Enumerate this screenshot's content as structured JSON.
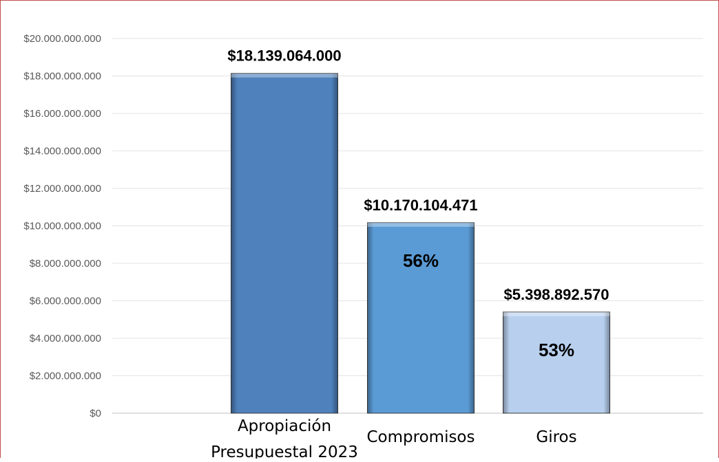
{
  "chart_data": {
    "type": "bar",
    "categories": [
      "Apropiación Presupuestal 2023",
      "Compromisos",
      "Giros"
    ],
    "category_lines": [
      [
        "Apropiación",
        "Presupuestal 2023"
      ],
      [
        "Compromisos"
      ],
      [
        "Giros"
      ]
    ],
    "values": [
      18139064000,
      10170104471,
      5398892570
    ],
    "data_labels": [
      "$18.139.064.000",
      "$10.170.104.471",
      "$5.398.892.570"
    ],
    "inner_labels": [
      "",
      "56%",
      "53%"
    ],
    "bar_colors": [
      "#4f81bd",
      "#5b9bd5",
      "#b8d0ee"
    ],
    "ylim": [
      0,
      20000000000
    ],
    "yticks": [
      0,
      2000000000,
      4000000000,
      6000000000,
      8000000000,
      10000000000,
      12000000000,
      14000000000,
      16000000000,
      18000000000,
      20000000000
    ],
    "ytick_labels": [
      "$0",
      "$2.000.000.000",
      "$4.000.000.000",
      "$6.000.000.000",
      "$8.000.000.000",
      "$10.000.000.000",
      "$12.000.000.000",
      "$14.000.000.000",
      "$16.000.000.000",
      "$18.000.000.000",
      "$20.000.000.000"
    ],
    "title": "",
    "xlabel": "",
    "ylabel": "",
    "grid": true,
    "legend": "none"
  }
}
